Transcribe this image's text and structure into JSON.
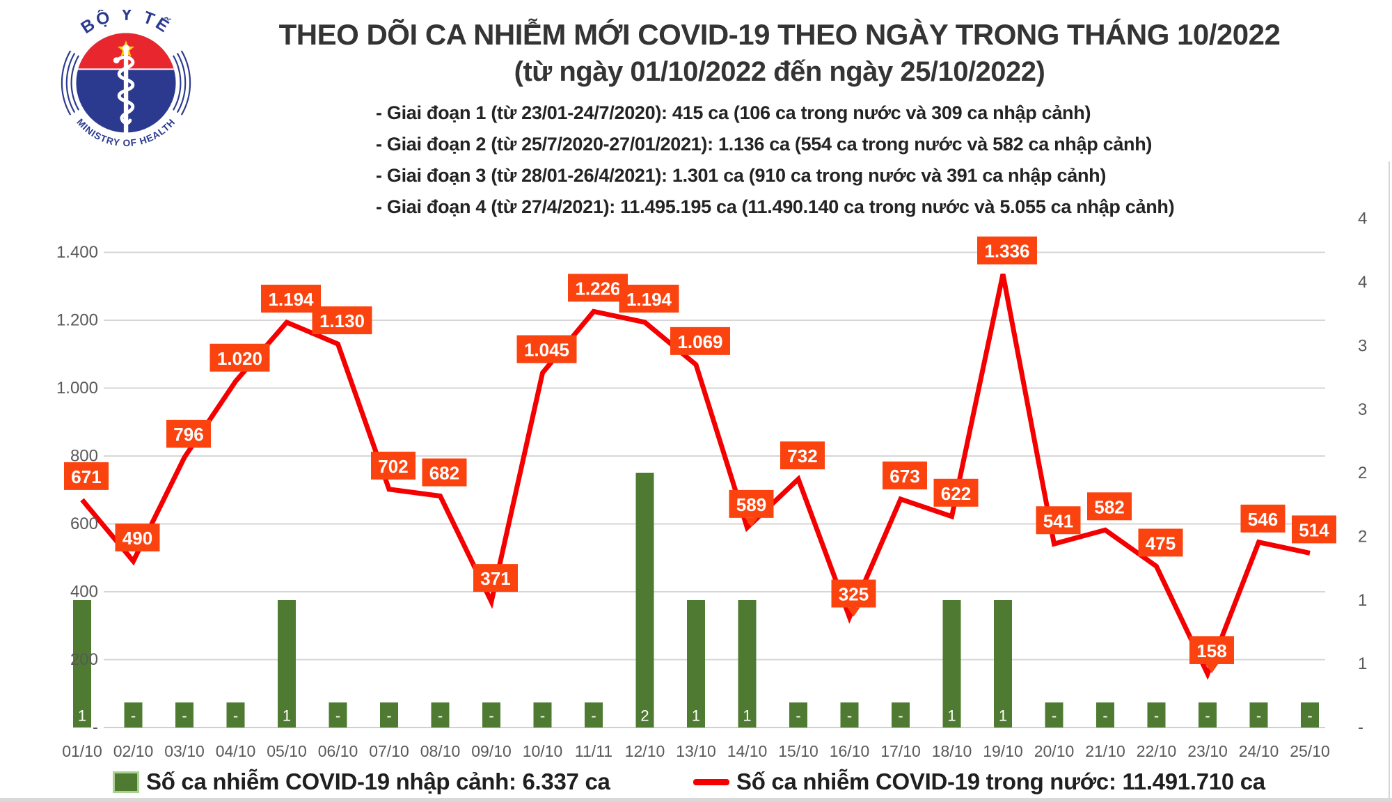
{
  "header": {
    "logo": {
      "arc_top": "BỘ Y TẾ",
      "arc_bottom": "MINISTRY OF HEALTH"
    },
    "title_line1": "THEO DÕI CA NHIỄM MỚI COVID-19 THEO NGÀY TRONG THÁNG 10/2022",
    "title_line2": "(từ ngày 01/10/2022 đến ngày 25/10/2022)",
    "notes": [
      "- Giai đoạn 1 (từ 23/01-24/7/2020): 415 ca (106 ca trong nước và 309 ca nhập cảnh)",
      "- Giai đoạn 2 (từ 25/7/2020-27/01/2021): 1.136 ca (554 ca trong nước và 582 ca nhập cảnh)",
      "- Giai đoạn 3 (từ 28/01-26/4/2021): 1.301 ca (910 ca trong nước và 391 ca nhập cảnh)",
      "- Giai đoạn 4 (từ 27/4/2021): 11.495.195 ca (11.490.140 ca trong nước và 5.055 ca nhập cảnh)"
    ]
  },
  "legend": {
    "bar_label": "Số ca nhiễm COVID-19 nhập cảnh: 6.337 ca",
    "line_label": "Số ca nhiễm COVID-19 trong nước: 11.491.710 ca"
  },
  "colors": {
    "bar": "#4e7b31",
    "bar_border": "#a9d18e",
    "line": "#f40000",
    "label_box": "#fb4310",
    "label_text": "#ffffff",
    "axis_text": "#595959",
    "grid": "#d6d6d6",
    "title_text": "#343434",
    "logo_blue": "#2b3a8f",
    "logo_red": "#e8262d",
    "logo_star": "#ffd400"
  },
  "chart_data": {
    "type": "combo bar+line",
    "title": "THEO DÕI CA NHIỄM MỚI COVID-19 THEO NGÀY TRONG THÁNG 10/2022",
    "categories": [
      "01/10",
      "02/10",
      "03/10",
      "04/10",
      "05/10",
      "06/10",
      "07/10",
      "08/10",
      "09/10",
      "10/10",
      "11/11",
      "12/10",
      "13/10",
      "14/10",
      "15/10",
      "16/10",
      "17/10",
      "18/10",
      "19/10",
      "20/10",
      "21/10",
      "22/10",
      "23/10",
      "24/10",
      "25/10"
    ],
    "series": [
      {
        "name": "Số ca nhiễm COVID-19 nhập cảnh",
        "type": "bar",
        "axis": "right",
        "values": [
          1,
          0,
          0,
          0,
          1,
          0,
          0,
          0,
          0,
          0,
          0,
          2,
          1,
          1,
          0,
          0,
          0,
          1,
          1,
          0,
          0,
          0,
          0,
          0,
          0
        ],
        "point_labels": [
          "1",
          "-",
          "-",
          "-",
          "1",
          "-",
          "-",
          "-",
          "-",
          "-",
          "-",
          "2",
          "1",
          "1",
          "-",
          "-",
          "-",
          "1",
          "1",
          "-",
          "-",
          "-",
          "-",
          "-",
          "-"
        ]
      },
      {
        "name": "Số ca nhiễm COVID-19 trong nước",
        "type": "line",
        "axis": "left",
        "values": [
          671,
          490,
          796,
          1020,
          1194,
          1130,
          702,
          682,
          371,
          1045,
          1226,
          1194,
          1069,
          589,
          732,
          325,
          673,
          622,
          1336,
          541,
          582,
          475,
          158,
          546,
          514
        ],
        "point_labels": [
          "671",
          "490",
          "796",
          "1.020",
          "1.194",
          "1.130",
          "702",
          "682",
          "371",
          "1.045",
          "1.226",
          "1.194",
          "1.069",
          "589",
          "732",
          "325",
          "673",
          "622",
          "1.336",
          "541",
          "582",
          "475",
          "158",
          "546",
          "514"
        ]
      }
    ],
    "left_axis": {
      "range": [
        0,
        1400
      ],
      "tick_step": 200,
      "tick_labels_top_to_bottom": [
        "1.400",
        "1.200",
        "1.000",
        "800",
        "600",
        "400",
        "200",
        "-"
      ]
    },
    "right_axis": {
      "tick_labels_top_to_bottom": [
        "4",
        "4",
        "3",
        "3",
        "2",
        "2",
        "1",
        "1",
        "-"
      ]
    },
    "grid": true,
    "legend_position": "bottom"
  }
}
